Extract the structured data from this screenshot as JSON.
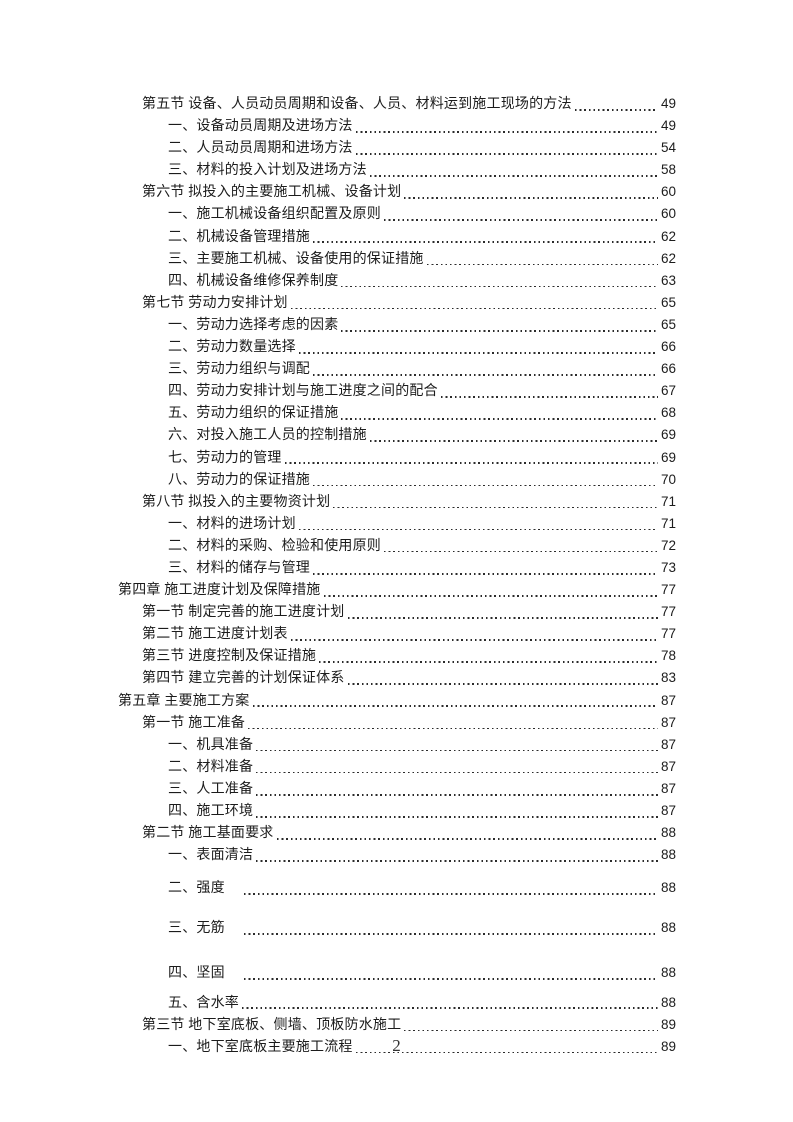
{
  "page": {
    "footer_page_number": "2"
  },
  "toc": {
    "entries": [
      {
        "level": "section",
        "text": "第五节 设备、人员动员周期和设备、人员、材料运到施工现场的方法",
        "page": "49"
      },
      {
        "level": "sub",
        "text": "一、设备动员周期及进场方法",
        "page": "49"
      },
      {
        "level": "sub",
        "text": "二、人员动员周期和进场方法",
        "page": "54"
      },
      {
        "level": "sub",
        "text": "三、材料的投入计划及进场方法",
        "page": "58"
      },
      {
        "level": "section",
        "text": "第六节 拟投入的主要施工机械、设备计划",
        "page": "60"
      },
      {
        "level": "sub",
        "text": "一、施工机械设备组织配置及原则",
        "page": "60"
      },
      {
        "level": "sub",
        "text": "二、机械设备管理措施",
        "page": "62"
      },
      {
        "level": "sub",
        "text": "三、主要施工机械、设备使用的保证措施",
        "page": "62"
      },
      {
        "level": "sub",
        "text": "四、机械设备维修保养制度",
        "page": "63"
      },
      {
        "level": "section",
        "text": "第七节 劳动力安排计划",
        "page": "65"
      },
      {
        "level": "sub",
        "text": "一、劳动力选择考虑的因素",
        "page": "65"
      },
      {
        "level": "sub",
        "text": "二、劳动力数量选择",
        "page": "66"
      },
      {
        "level": "sub",
        "text": "三、劳动力组织与调配",
        "page": "66"
      },
      {
        "level": "sub",
        "text": "四、劳动力安排计划与施工进度之间的配合",
        "page": "67"
      },
      {
        "level": "sub",
        "text": "五、劳动力组织的保证措施",
        "page": "68"
      },
      {
        "level": "sub",
        "text": "六、对投入施工人员的控制措施",
        "page": "69"
      },
      {
        "level": "sub",
        "text": "七、劳动力的管理",
        "page": "69"
      },
      {
        "level": "sub",
        "text": "八、劳动力的保证措施",
        "page": "70"
      },
      {
        "level": "section",
        "text": "第八节 拟投入的主要物资计划",
        "page": "71"
      },
      {
        "level": "sub",
        "text": "一、材料的进场计划",
        "page": "71"
      },
      {
        "level": "sub",
        "text": "二、材料的采购、检验和使用原则",
        "page": "72"
      },
      {
        "level": "sub",
        "text": "三、材料的储存与管理",
        "page": "73"
      },
      {
        "level": "chapter",
        "text": "第四章 施工进度计划及保障措施",
        "page": "77"
      },
      {
        "level": "section",
        "text": "第一节 制定完善的施工进度计划",
        "page": "77"
      },
      {
        "level": "section",
        "text": "第二节 施工进度计划表",
        "page": "77"
      },
      {
        "level": "section",
        "text": "第三节 进度控制及保证措施",
        "page": "78"
      },
      {
        "level": "section",
        "text": "第四节 建立完善的计划保证体系",
        "page": "83"
      },
      {
        "level": "chapter",
        "text": "第五章 主要施工方案",
        "page": "87"
      },
      {
        "level": "section",
        "text": "第一节 施工准备",
        "page": "87"
      },
      {
        "level": "sub",
        "text": "一、机具准备",
        "page": "87"
      },
      {
        "level": "sub",
        "text": "二、材料准备",
        "page": "87"
      },
      {
        "level": "sub",
        "text": "三、人工准备",
        "page": "87"
      },
      {
        "level": "sub",
        "text": "四、施工环境",
        "page": "87"
      },
      {
        "level": "section",
        "text": "第二节 施工基面要求",
        "page": "88"
      },
      {
        "level": "sub",
        "text": "一、表面清洁",
        "page": "88"
      },
      {
        "level": "sub",
        "text": "二、强度",
        "page": "88",
        "gap_before": 11,
        "tab_before_leader": true
      },
      {
        "level": "sub",
        "text": "三、无筋",
        "page": "88",
        "gap_before": 18,
        "tab_before_leader": true
      },
      {
        "level": "sub",
        "text": "四、坚固",
        "page": "88",
        "gap_before": 23,
        "tab_before_leader": true
      },
      {
        "level": "sub",
        "text": "五、含水率",
        "page": "88",
        "gap_before": 7
      },
      {
        "level": "section",
        "text": "第三节 地下室底板、侧墙、顶板防水施工",
        "page": "89"
      },
      {
        "level": "sub",
        "text": "一、地下室底板主要施工流程",
        "page": "89"
      }
    ]
  }
}
